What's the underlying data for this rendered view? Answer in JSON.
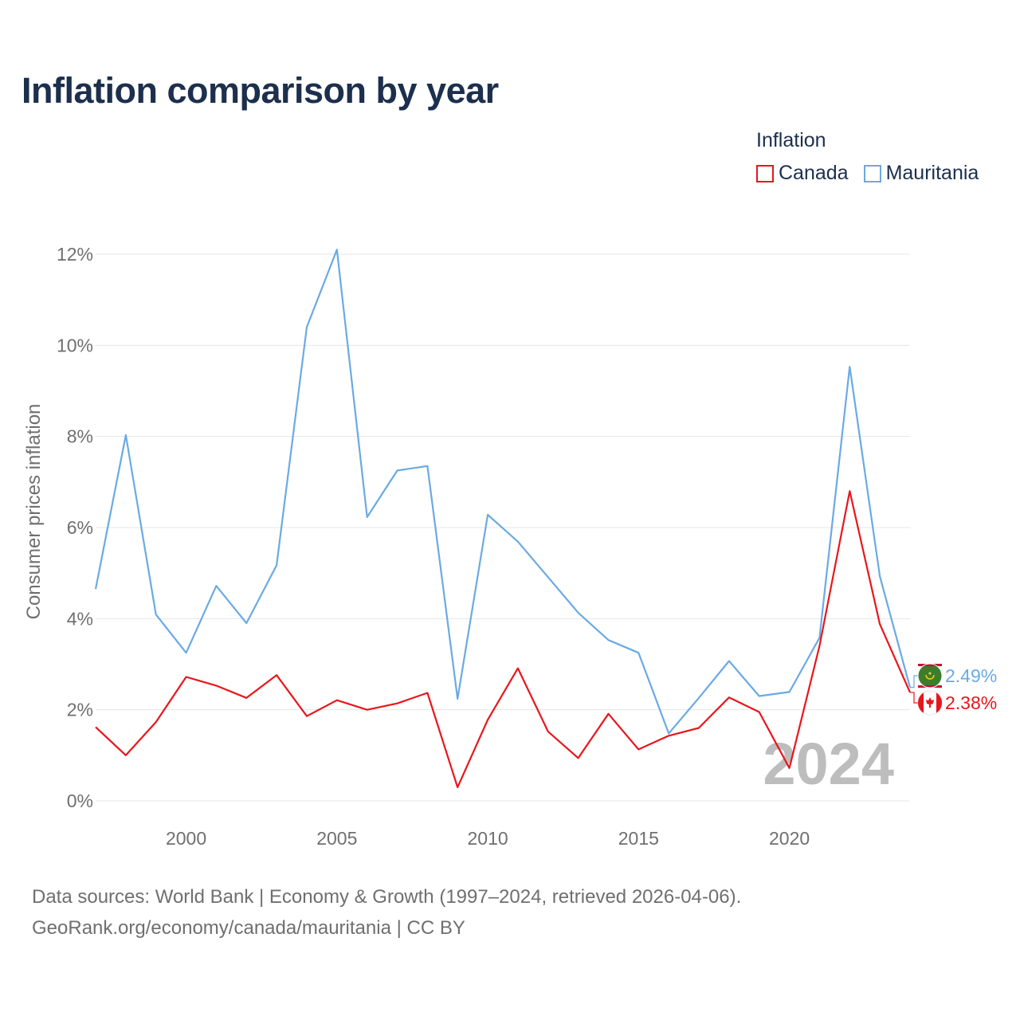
{
  "title": "Inflation comparison by year",
  "legend": {
    "title": "Inflation",
    "items": [
      {
        "label": "Canada",
        "color": "#e8161c"
      },
      {
        "label": "Mauritania",
        "color": "#6aaae4"
      }
    ]
  },
  "chart_data": {
    "type": "line",
    "title": "Inflation comparison by year",
    "xlabel": "",
    "ylabel": "Consumer prices inflation",
    "x": [
      1997,
      1998,
      1999,
      2000,
      2001,
      2002,
      2003,
      2004,
      2005,
      2006,
      2007,
      2008,
      2009,
      2010,
      2011,
      2012,
      2013,
      2014,
      2015,
      2016,
      2017,
      2018,
      2019,
      2020,
      2021,
      2022,
      2023,
      2024
    ],
    "xlim": [
      1997,
      2024
    ],
    "ylim": [
      0,
      12
    ],
    "x_ticks": [
      2000,
      2005,
      2010,
      2015,
      2020
    ],
    "y_ticks": [
      0,
      2,
      4,
      6,
      8,
      10,
      12
    ],
    "y_tick_labels": [
      "0%",
      "2%",
      "4%",
      "6%",
      "8%",
      "10%",
      "12%"
    ],
    "grid": true,
    "series": [
      {
        "name": "Canada",
        "color": "#e8161c",
        "values": [
          1.62,
          1.0,
          1.73,
          2.72,
          2.53,
          2.26,
          2.76,
          1.86,
          2.21,
          2.0,
          2.14,
          2.37,
          0.3,
          1.78,
          2.91,
          1.52,
          0.94,
          1.91,
          1.13,
          1.43,
          1.6,
          2.27,
          1.95,
          0.72,
          3.4,
          6.8,
          3.88,
          2.38
        ],
        "end_label": "2.38%",
        "flag_icon": "canada-flag-icon"
      },
      {
        "name": "Mauritania",
        "color": "#6aaae4",
        "values": [
          4.65,
          8.03,
          4.09,
          3.25,
          4.72,
          3.9,
          5.17,
          10.4,
          12.1,
          6.23,
          7.25,
          7.35,
          2.24,
          6.28,
          5.69,
          4.91,
          4.13,
          3.53,
          3.25,
          1.48,
          2.26,
          3.07,
          2.3,
          2.39,
          3.58,
          9.53,
          4.93,
          2.49
        ],
        "end_label": "2.49%",
        "flag_icon": "mauritania-flag-icon"
      }
    ],
    "year_watermark": "2024"
  },
  "footer": {
    "line1": "Data sources: World Bank | Economy & Growth (1997–2024, retrieved 2026-04-06).",
    "line2": "GeoRank.org/economy/canada/mauritania | CC BY"
  }
}
